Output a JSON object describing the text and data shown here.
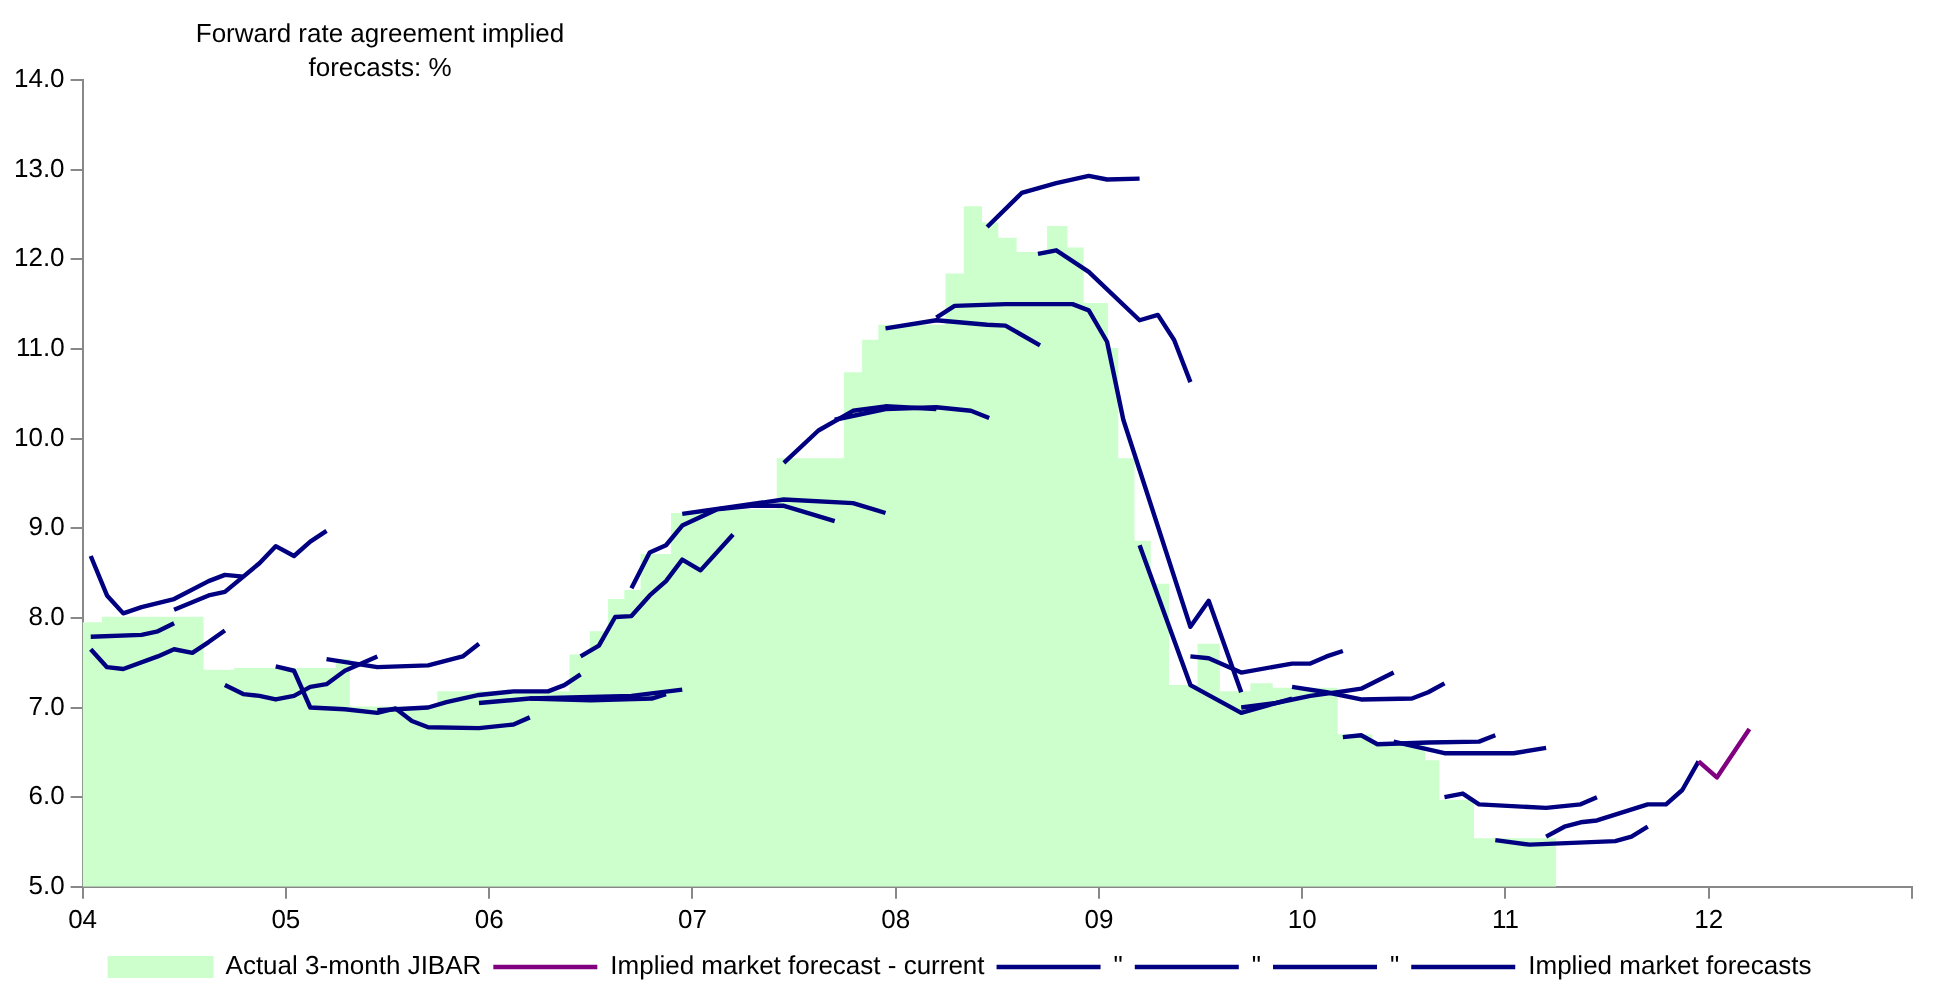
{
  "chart_data": {
    "type": "line",
    "title": "Forward rate agreement implied forecasts: %",
    "xlim": [
      2004,
      2013
    ],
    "xticks": [
      {
        "value": 2004,
        "label": "04"
      },
      {
        "value": 2005,
        "label": "05"
      },
      {
        "value": 2006,
        "label": "06"
      },
      {
        "value": 2007,
        "label": "07"
      },
      {
        "value": 2008,
        "label": "08"
      },
      {
        "value": 2009,
        "label": "09"
      },
      {
        "value": 2010,
        "label": "10"
      },
      {
        "value": 2011,
        "label": "11"
      },
      {
        "value": 2012,
        "label": "12"
      },
      {
        "value": 2013,
        "label": null
      }
    ],
    "ylim": [
      5,
      14
    ],
    "yticks": [
      {
        "value": 5,
        "label": "5.0"
      },
      {
        "value": 6,
        "label": "6.0"
      },
      {
        "value": 7,
        "label": "7.0"
      },
      {
        "value": 8,
        "label": "8.0"
      },
      {
        "value": 9,
        "label": "9.0"
      },
      {
        "value": 10,
        "label": "10.0"
      },
      {
        "value": 11,
        "label": "11.0"
      },
      {
        "value": 12,
        "label": "12.0"
      },
      {
        "value": 13,
        "label": "13.0"
      },
      {
        "value": 14,
        "label": "14.0"
      }
    ],
    "legend": "bottom",
    "marker": "none",
    "line_style": "solid",
    "series": [
      {
        "name": "Actual 3-month JIBAR",
        "type": "area",
        "color": "#ccffcc",
        "x": [
          2004.0,
          2004.1,
          2004.1,
          2004.59,
          2004.59,
          2004.75,
          2004.75,
          2005.25,
          2005.25,
          2005.31,
          2005.31,
          2005.75,
          2005.75,
          2006.4,
          2006.4,
          2006.5,
          2006.5,
          2006.59,
          2006.59,
          2006.67,
          2006.67,
          2006.75,
          2006.75,
          2006.9,
          2006.9,
          2007.09,
          2007.09,
          2007.42,
          2007.42,
          2007.75,
          2007.75,
          2007.84,
          2007.84,
          2007.92,
          2007.92,
          2008.25,
          2008.25,
          2008.34,
          2008.34,
          2008.42,
          2008.42,
          2008.5,
          2008.5,
          2008.59,
          2008.59,
          2008.75,
          2008.75,
          2008.84,
          2008.84,
          2008.92,
          2008.92,
          2009.04,
          2009.04,
          2009.09,
          2009.09,
          2009.17,
          2009.17,
          2009.25,
          2009.25,
          2009.34,
          2009.34,
          2009.49,
          2009.49,
          2009.59,
          2009.59,
          2009.75,
          2009.75,
          2009.85,
          2009.85,
          2010.17,
          2010.17,
          2010.34,
          2010.34,
          2010.6,
          2010.6,
          2010.67,
          2010.67,
          2010.84,
          2010.84,
          2011.25
        ],
        "values": [
          7.94,
          7.94,
          8.0,
          8.0,
          7.41,
          7.41,
          7.43,
          7.43,
          7.53,
          7.53,
          7.0,
          7.0,
          7.17,
          7.17,
          7.58,
          7.58,
          7.84,
          7.84,
          8.2,
          8.2,
          8.3,
          8.3,
          8.7,
          8.7,
          9.16,
          9.16,
          9.2,
          9.2,
          9.77,
          9.77,
          10.73,
          10.73,
          11.09,
          11.09,
          11.26,
          11.26,
          11.83,
          11.83,
          12.58,
          12.58,
          12.4,
          12.4,
          12.23,
          12.23,
          12.07,
          12.07,
          12.36,
          12.36,
          12.12,
          12.12,
          11.5,
          11.5,
          11.0,
          11.0,
          9.77,
          9.77,
          8.85,
          8.85,
          8.37,
          8.37,
          7.24,
          7.24,
          7.7,
          7.7,
          7.17,
          7.17,
          7.26,
          7.26,
          7.21,
          7.21,
          6.69,
          6.69,
          6.6,
          6.6,
          6.4,
          6.4,
          5.96,
          5.96,
          5.53,
          5.53
        ]
      },
      {
        "name": "Implied market forecast - current",
        "color": "#800080",
        "x": [
          2011.95,
          2012.04,
          2012.2
        ],
        "values": [
          6.4,
          6.22,
          6.76
        ]
      },
      {
        "name": "\"",
        "color": "#000080",
        "x": [
          2004.04,
          2004.12,
          2004.2,
          2004.29,
          2004.45,
          2004.62,
          2004.7,
          2004.79
        ],
        "values": [
          8.69,
          8.25,
          8.05,
          8.12,
          8.21,
          8.41,
          8.48,
          8.46
        ]
      },
      {
        "name": "\"",
        "color": "#000080",
        "x": [
          2004.45,
          2004.62,
          2004.7,
          2004.87,
          2004.95,
          2005.04,
          2005.12,
          2005.2
        ],
        "values": [
          8.09,
          8.25,
          8.29,
          8.61,
          8.8,
          8.69,
          8.85,
          8.97
        ]
      },
      {
        "name": "\"",
        "color": "#000080",
        "x": [
          2004.04,
          2004.29,
          2004.37,
          2004.45
        ],
        "values": [
          7.79,
          7.81,
          7.85,
          7.94
        ]
      },
      {
        "name": "Implied market forecasts",
        "color": "#000080",
        "x": [
          2004.04,
          2004.12,
          2004.2,
          2004.37,
          2004.45,
          2004.54,
          2004.62,
          2004.7
        ],
        "values": [
          7.65,
          7.45,
          7.43,
          7.57,
          7.65,
          7.61,
          7.73,
          7.86
        ]
      },
      {
        "color": "#000080",
        "x": [
          2004.7,
          2004.79,
          2004.87,
          2004.95,
          2005.04,
          2005.12,
          2005.2,
          2005.29,
          2005.45
        ],
        "values": [
          7.25,
          7.15,
          7.13,
          7.09,
          7.13,
          7.23,
          7.26,
          7.41,
          7.57
        ]
      },
      {
        "color": "#000080",
        "x": [
          2004.95,
          2005.04,
          2005.12,
          2005.29,
          2005.45,
          2005.54,
          2005.62,
          2005.7,
          2005.95,
          2006.12,
          2006.2
        ],
        "values": [
          7.46,
          7.41,
          7.0,
          6.98,
          6.94,
          6.99,
          6.85,
          6.78,
          6.77,
          6.81,
          6.89
        ]
      },
      {
        "color": "#000080",
        "x": [
          2005.2,
          2005.45,
          2005.7,
          2005.87,
          2005.95
        ],
        "values": [
          7.54,
          7.45,
          7.47,
          7.57,
          7.71
        ]
      },
      {
        "color": "#000080",
        "x": [
          2005.45,
          2005.7,
          2005.79,
          2005.95,
          2006.12,
          2006.29,
          2006.37,
          2006.45
        ],
        "values": [
          6.97,
          7.0,
          7.06,
          7.14,
          7.18,
          7.18,
          7.25,
          7.37
        ]
      },
      {
        "color": "#000080",
        "x": [
          2005.95,
          2006.2,
          2006.7,
          2006.95
        ],
        "values": [
          7.05,
          7.1,
          7.13,
          7.2
        ]
      },
      {
        "color": "#000080",
        "x": [
          2006.2,
          2006.5,
          2006.8,
          2006.87
        ],
        "values": [
          7.1,
          7.08,
          7.1,
          7.15
        ]
      },
      {
        "color": "#000080",
        "x": [
          2006.45,
          2006.54,
          2006.62,
          2006.7,
          2006.79,
          2006.87,
          2006.95,
          2007.04,
          2007.2
        ],
        "values": [
          7.57,
          7.69,
          8.01,
          8.02,
          8.25,
          8.41,
          8.65,
          8.53,
          8.93
        ]
      },
      {
        "color": "#000080",
        "x": [
          2006.7,
          2006.79,
          2006.87,
          2006.95,
          2007.12,
          2007.29,
          2007.45,
          2007.7
        ],
        "values": [
          8.33,
          8.73,
          8.81,
          9.03,
          9.21,
          9.25,
          9.25,
          9.08
        ]
      },
      {
        "color": "#000080",
        "x": [
          2006.95,
          2007.2,
          2007.45,
          2007.79,
          2007.95
        ],
        "values": [
          9.16,
          9.24,
          9.32,
          9.28,
          9.17
        ]
      },
      {
        "color": "#000080",
        "x": [
          2007.45,
          2007.62,
          2007.79,
          2007.95,
          2008.2
        ],
        "values": [
          9.73,
          10.09,
          10.31,
          10.36,
          10.33
        ]
      },
      {
        "color": "#000080",
        "x": [
          2007.7,
          2007.95,
          2008.2,
          2008.37,
          2008.46
        ],
        "values": [
          10.21,
          10.33,
          10.35,
          10.31,
          10.23
        ]
      },
      {
        "color": "#000080",
        "x": [
          2007.95,
          2008.2,
          2008.45,
          2008.54,
          2008.71
        ],
        "values": [
          11.23,
          11.32,
          11.27,
          11.26,
          11.04
        ]
      },
      {
        "color": "#000080",
        "x": [
          2008.2,
          2008.29,
          2008.54,
          2008.87,
          2008.95,
          2009.04,
          2009.12,
          2009.45,
          2009.54,
          2009.7
        ],
        "values": [
          11.35,
          11.48,
          11.5,
          11.5,
          11.43,
          11.08,
          10.21,
          7.9,
          8.19,
          7.17
        ]
      },
      {
        "color": "#000080",
        "x": [
          2008.45,
          2008.62,
          2008.79,
          2008.95,
          2009.04,
          2009.2
        ],
        "values": [
          12.36,
          12.74,
          12.85,
          12.93,
          12.89,
          12.9
        ]
      },
      {
        "color": "#000080",
        "x": [
          2008.7,
          2008.79,
          2008.95,
          2009.2,
          2009.29,
          2009.37,
          2009.45
        ],
        "values": [
          12.06,
          12.1,
          11.86,
          11.32,
          11.38,
          11.1,
          10.63
        ]
      },
      {
        "color": "#000080",
        "x": [
          2009.2,
          2009.45,
          2009.7,
          2009.95
        ],
        "values": [
          8.81,
          7.25,
          6.94,
          7.1
        ]
      },
      {
        "color": "#000080",
        "x": [
          2009.45,
          2009.54,
          2009.7,
          2009.95,
          2010.04,
          2010.12,
          2010.2
        ],
        "values": [
          7.57,
          7.55,
          7.39,
          7.49,
          7.49,
          7.57,
          7.63
        ]
      },
      {
        "color": "#000080",
        "x": [
          2009.7,
          2009.87,
          2010.04,
          2010.2,
          2010.29,
          2010.45
        ],
        "values": [
          7.0,
          7.05,
          7.13,
          7.18,
          7.21,
          7.39
        ]
      },
      {
        "color": "#000080",
        "x": [
          2009.95,
          2010.12,
          2010.29,
          2010.54,
          2010.62,
          2010.7
        ],
        "values": [
          7.23,
          7.17,
          7.09,
          7.1,
          7.17,
          7.27
        ]
      },
      {
        "color": "#000080",
        "x": [
          2010.2,
          2010.29,
          2010.37,
          2010.62,
          2010.87,
          2010.95
        ],
        "values": [
          6.67,
          6.69,
          6.59,
          6.61,
          6.62,
          6.69
        ]
      },
      {
        "color": "#000080",
        "x": [
          2010.45,
          2010.7,
          2011.04,
          2011.2
        ],
        "values": [
          6.62,
          6.49,
          6.49,
          6.55
        ]
      },
      {
        "color": "#000080",
        "x": [
          2010.7,
          2010.79,
          2010.87,
          2011.2,
          2011.37,
          2011.45
        ],
        "values": [
          6.0,
          6.04,
          5.92,
          5.88,
          5.92,
          6.0
        ]
      },
      {
        "color": "#000080",
        "x": [
          2010.95,
          2011.12,
          2011.54,
          2011.62,
          2011.7
        ],
        "values": [
          5.52,
          5.47,
          5.51,
          5.56,
          5.67
        ]
      },
      {
        "color": "#000080",
        "x": [
          2011.2,
          2011.29,
          2011.37,
          2011.45,
          2011.7,
          2011.79,
          2011.87,
          2011.95
        ],
        "values": [
          5.56,
          5.67,
          5.72,
          5.74,
          5.92,
          5.92,
          6.08,
          6.4
        ]
      }
    ]
  }
}
